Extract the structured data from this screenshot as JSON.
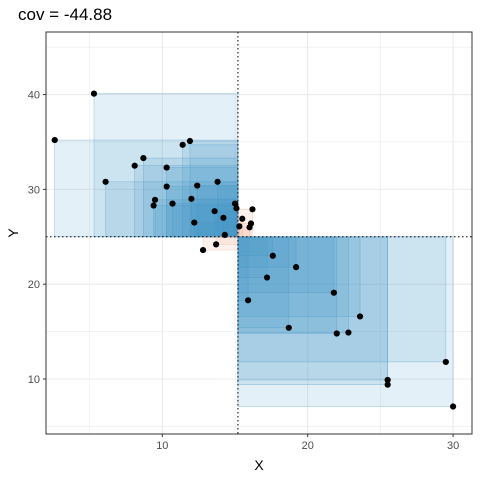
{
  "chart_data": {
    "type": "scatter",
    "title": "cov = -44.88",
    "xlabel": "X",
    "ylabel": "Y",
    "xlim": [
      2,
      31.3
    ],
    "ylim": [
      4.2,
      46.6
    ],
    "xticks": [
      10,
      20,
      30
    ],
    "yticks": [
      10,
      20,
      30,
      40
    ],
    "grid": true,
    "mean": {
      "x": 15.2,
      "y": 25.0
    },
    "colors": {
      "positive_rect": "#f4a582",
      "negative_rect": "#4393c3",
      "point": "#000000",
      "mean_line": "#000000",
      "panel_border": "#333333",
      "grid": "#ebebeb"
    },
    "points": [
      {
        "x": 2.6,
        "y": 35.2
      },
      {
        "x": 5.3,
        "y": 40.1
      },
      {
        "x": 6.1,
        "y": 30.8
      },
      {
        "x": 8.1,
        "y": 32.5
      },
      {
        "x": 8.7,
        "y": 33.3
      },
      {
        "x": 9.4,
        "y": 28.3
      },
      {
        "x": 9.5,
        "y": 28.9
      },
      {
        "x": 10.3,
        "y": 32.3
      },
      {
        "x": 10.3,
        "y": 30.3
      },
      {
        "x": 10.7,
        "y": 28.5
      },
      {
        "x": 11.4,
        "y": 34.7
      },
      {
        "x": 11.9,
        "y": 35.1
      },
      {
        "x": 12.0,
        "y": 29.0
      },
      {
        "x": 12.2,
        "y": 26.5
      },
      {
        "x": 12.4,
        "y": 30.4
      },
      {
        "x": 13.6,
        "y": 27.7
      },
      {
        "x": 13.8,
        "y": 30.8
      },
      {
        "x": 14.2,
        "y": 27.0
      },
      {
        "x": 14.3,
        "y": 25.2
      },
      {
        "x": 15.0,
        "y": 28.5
      },
      {
        "x": 15.1,
        "y": 28.0
      },
      {
        "x": 12.8,
        "y": 23.6
      },
      {
        "x": 13.7,
        "y": 24.2
      },
      {
        "x": 15.3,
        "y": 26.1
      },
      {
        "x": 15.5,
        "y": 26.9
      },
      {
        "x": 16.0,
        "y": 26.0
      },
      {
        "x": 16.1,
        "y": 26.4
      },
      {
        "x": 16.2,
        "y": 27.9
      },
      {
        "x": 15.9,
        "y": 18.3
      },
      {
        "x": 17.2,
        "y": 20.7
      },
      {
        "x": 17.6,
        "y": 23.0
      },
      {
        "x": 18.7,
        "y": 15.4
      },
      {
        "x": 19.2,
        "y": 21.8
      },
      {
        "x": 21.8,
        "y": 19.1
      },
      {
        "x": 22.0,
        "y": 14.8
      },
      {
        "x": 22.8,
        "y": 14.9
      },
      {
        "x": 23.6,
        "y": 16.6
      },
      {
        "x": 25.5,
        "y": 9.9
      },
      {
        "x": 25.5,
        "y": 9.4
      },
      {
        "x": 29.5,
        "y": 11.8
      },
      {
        "x": 30.0,
        "y": 7.1
      }
    ]
  }
}
